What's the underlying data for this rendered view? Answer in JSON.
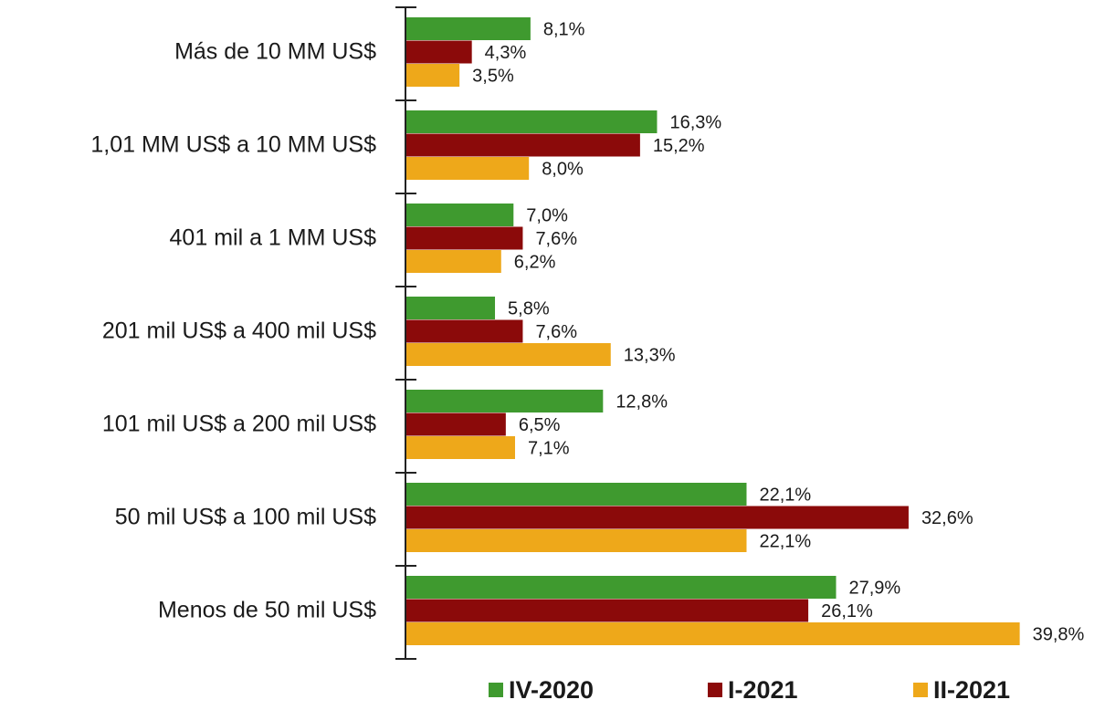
{
  "chart_data": {
    "type": "bar",
    "orientation": "horizontal",
    "categories": [
      "Más de 10 MM US$",
      "1,01 MM US$ a 10 MM US$",
      "401 mil a 1 MM US$",
      "201 mil US$ a 400 mil US$",
      "101 mil US$ a 200 mil US$",
      "50 mil US$ a 100 mil US$",
      "Menos de 50 mil US$"
    ],
    "series": [
      {
        "name": "IV-2020",
        "color": "#3f9a2f",
        "values": [
          8.1,
          16.3,
          7.0,
          5.8,
          12.8,
          22.1,
          27.9
        ],
        "value_labels": [
          "8,1%",
          "16,3%",
          "7,0%",
          "5,8%",
          "12,8%",
          "22,1%",
          "27,9%"
        ]
      },
      {
        "name": "I-2021",
        "color": "#8b0a0a",
        "values": [
          4.3,
          15.2,
          7.6,
          7.6,
          6.5,
          32.6,
          26.1
        ],
        "value_labels": [
          "4,3%",
          "15,2%",
          "7,6%",
          "7,6%",
          "6,5%",
          "32,6%",
          "26,1%"
        ]
      },
      {
        "name": "II-2021",
        "color": "#eea81a",
        "values": [
          3.5,
          8.0,
          6.2,
          13.3,
          7.1,
          22.1,
          39.8
        ],
        "value_labels": [
          "3,5%",
          "8,0%",
          "6,2%",
          "13,3%",
          "7,1%",
          "22,1%",
          "39,8%"
        ]
      }
    ],
    "legend": "bottom"
  }
}
